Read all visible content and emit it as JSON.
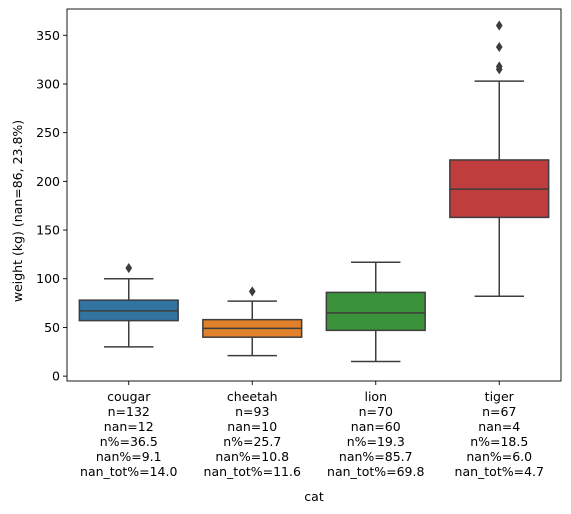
{
  "chart_data": {
    "type": "box",
    "xlabel": "cat",
    "ylabel": "weight (kg) (nan=86, 23.8%)",
    "ylim": [
      -5,
      377
    ],
    "yticks": [
      0,
      50,
      100,
      150,
      200,
      250,
      300,
      350
    ],
    "grid": false,
    "categories": [
      {
        "name": "cougar",
        "stats": [
          "n=132",
          "nan=12",
          "n%=36.5",
          "nan%=9.1",
          "nan_tot%=14.0"
        ],
        "color": "#3274a1",
        "whisker_low": 30,
        "q1": 57,
        "median": 67,
        "q3": 78,
        "whisker_high": 100,
        "outliers": [
          111
        ]
      },
      {
        "name": "cheetah",
        "stats": [
          "n=93",
          "nan=10",
          "n%=25.7",
          "nan%=10.8",
          "nan_tot%=11.6"
        ],
        "color": "#e1812c",
        "whisker_low": 21,
        "q1": 40,
        "median": 49,
        "q3": 58,
        "whisker_high": 77,
        "outliers": [
          87
        ]
      },
      {
        "name": "lion",
        "stats": [
          "n=70",
          "nan=60",
          "n%=19.3",
          "nan%=85.7",
          "nan_tot%=69.8"
        ],
        "color": "#3a923a",
        "whisker_low": 15,
        "q1": 47,
        "median": 65,
        "q3": 86,
        "whisker_high": 117,
        "outliers": []
      },
      {
        "name": "tiger",
        "stats": [
          "n=67",
          "nan=4",
          "n%=18.5",
          "nan%=6.0",
          "nan_tot%=4.7"
        ],
        "color": "#c03d3e",
        "whisker_low": 82,
        "q1": 163,
        "median": 192,
        "q3": 222,
        "whisker_high": 303,
        "outliers": [
          315,
          318,
          338,
          360
        ]
      }
    ]
  }
}
